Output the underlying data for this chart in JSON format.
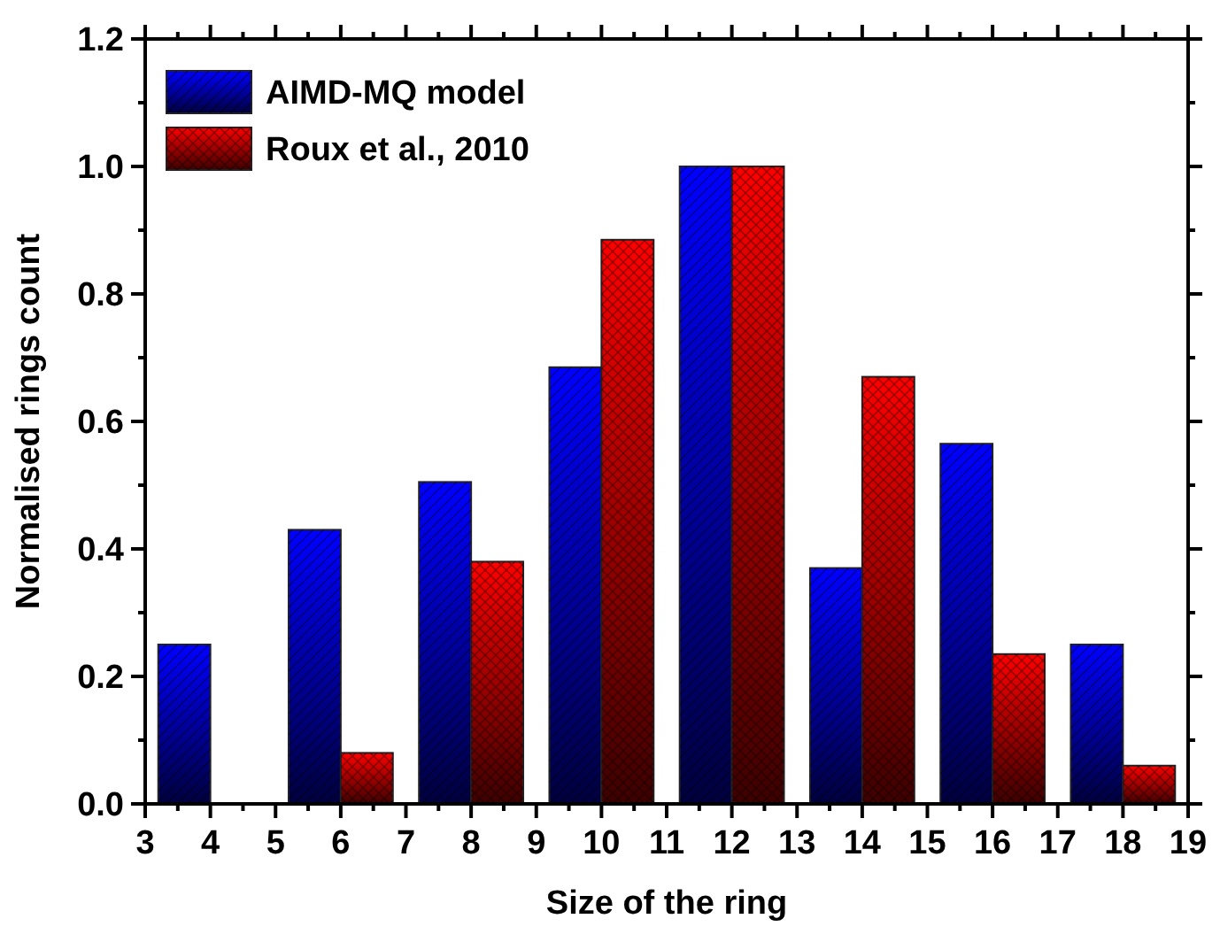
{
  "chart_data": {
    "type": "bar",
    "xlabel": "Size of the ring",
    "ylabel": "Normalised rings count",
    "x": [
      4,
      6,
      8,
      10,
      12,
      14,
      16,
      18
    ],
    "series": [
      {
        "name": "AIMD-MQ model",
        "color": "#0000ff",
        "values": [
          0.25,
          0.43,
          0.505,
          0.685,
          1.0,
          0.37,
          0.565,
          0.25
        ]
      },
      {
        "name": "Roux et al., 2010",
        "color": "#ff0000",
        "values": [
          0,
          0.08,
          0.38,
          0.885,
          1.0,
          0.67,
          0.235,
          0.06
        ]
      }
    ],
    "xlim": [
      3,
      19
    ],
    "xticks": [
      3,
      4,
      5,
      6,
      7,
      8,
      9,
      10,
      11,
      12,
      13,
      14,
      15,
      16,
      17,
      18,
      19
    ],
    "ylim": [
      0,
      1.2
    ],
    "yticks": [
      {
        "value": 0,
        "label": "0.0"
      },
      {
        "value": 0.2,
        "label": "0.2"
      },
      {
        "value": 0.4,
        "label": "0.4"
      },
      {
        "value": 0.6,
        "label": "0.6"
      },
      {
        "value": 0.8,
        "label": "0.8"
      },
      {
        "value": 1,
        "label": "1.0"
      },
      {
        "value": 1.2,
        "label": "1.2"
      }
    ],
    "grid": false,
    "legend": "top left"
  }
}
